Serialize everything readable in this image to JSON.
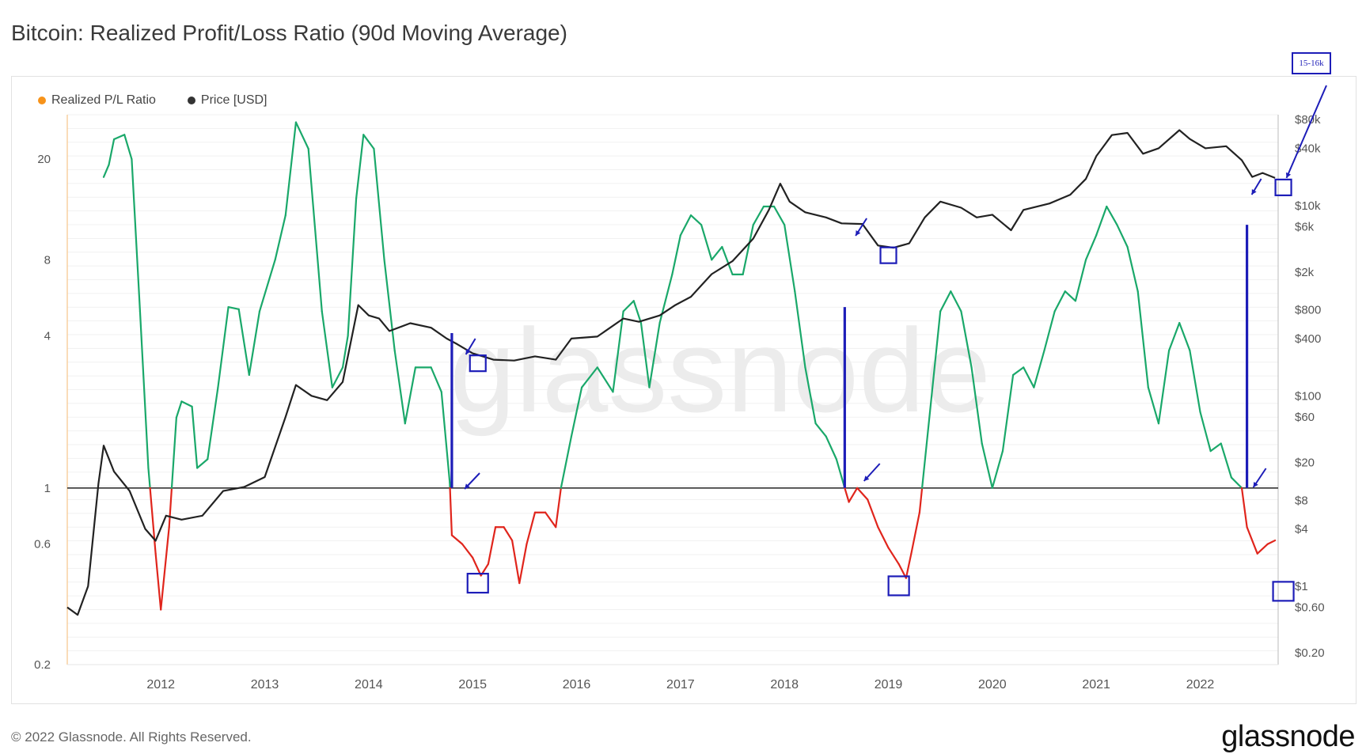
{
  "title": "Bitcoin: Realized Profit/Loss Ratio (90d Moving Average)",
  "legend": [
    {
      "label": "Realized P/L Ratio",
      "color": "#f7931a"
    },
    {
      "label": "Price [USD]",
      "color": "#333333"
    }
  ],
  "watermark": "glassnode",
  "footer": "© 2022 Glassnode. All Rights Reserved.",
  "brand": "glassnode",
  "annotation_badge": "15-16k",
  "colors": {
    "ratio_above_1": "#1aa86a",
    "ratio_below_1": "#e0251c",
    "price": "#222222",
    "annotation": "#1d1db8",
    "baseline": "#333333"
  },
  "chart_data": {
    "type": "line",
    "title": "Bitcoin: Realized Profit/Loss Ratio (90d Moving Average)",
    "x_range": [
      2011.1,
      2022.75
    ],
    "x_ticks": [
      "2012",
      "2013",
      "2014",
      "2015",
      "2016",
      "2017",
      "2018",
      "2019",
      "2020",
      "2021",
      "2022"
    ],
    "left_axis": {
      "scale": "log",
      "range": [
        0.2,
        30
      ],
      "ticks": [
        0.2,
        0.6,
        1,
        4,
        8,
        20
      ],
      "tick_labels": [
        "0.2",
        "0.6",
        "1",
        "4",
        "8",
        "20"
      ]
    },
    "right_axis": {
      "scale": "log",
      "range": [
        0.15,
        90000
      ],
      "ticks": [
        0.2,
        0.6,
        1,
        4,
        8,
        20,
        60,
        100,
        400,
        800,
        2000,
        6000,
        10000,
        40000,
        80000
      ],
      "tick_labels": [
        "$0.20",
        "$0.60",
        "$1",
        "$4",
        "$8",
        "$20",
        "$60",
        "$100",
        "$400",
        "$800",
        "$2k",
        "$6k",
        "$10k",
        "$40k",
        "$80k"
      ]
    },
    "baseline": 1,
    "series": [
      {
        "name": "Realized P/L Ratio",
        "axis": "left",
        "points": [
          [
            2011.45,
            17
          ],
          [
            2011.5,
            19
          ],
          [
            2011.55,
            24
          ],
          [
            2011.65,
            25
          ],
          [
            2011.72,
            20
          ],
          [
            2011.8,
            5
          ],
          [
            2011.88,
            1.2
          ],
          [
            2011.95,
            0.55
          ],
          [
            2012.0,
            0.33
          ],
          [
            2012.08,
            0.7
          ],
          [
            2012.15,
            1.9
          ],
          [
            2012.2,
            2.2
          ],
          [
            2012.3,
            2.1
          ],
          [
            2012.35,
            1.2
          ],
          [
            2012.45,
            1.3
          ],
          [
            2012.55,
            2.5
          ],
          [
            2012.65,
            5.2
          ],
          [
            2012.75,
            5.1
          ],
          [
            2012.85,
            2.8
          ],
          [
            2012.95,
            5
          ],
          [
            2013.1,
            8
          ],
          [
            2013.2,
            12
          ],
          [
            2013.3,
            28
          ],
          [
            2013.42,
            22
          ],
          [
            2013.55,
            5
          ],
          [
            2013.65,
            2.5
          ],
          [
            2013.75,
            3
          ],
          [
            2013.8,
            4
          ],
          [
            2013.88,
            14
          ],
          [
            2013.95,
            25
          ],
          [
            2014.05,
            22
          ],
          [
            2014.15,
            8
          ],
          [
            2014.25,
            3.5
          ],
          [
            2014.35,
            1.8
          ],
          [
            2014.45,
            3
          ],
          [
            2014.6,
            3
          ],
          [
            2014.7,
            2.4
          ],
          [
            2014.78,
            1.05
          ],
          [
            2014.8,
            0.65
          ],
          [
            2014.9,
            0.6
          ],
          [
            2015.0,
            0.53
          ],
          [
            2015.08,
            0.45
          ],
          [
            2015.15,
            0.5
          ],
          [
            2015.22,
            0.7
          ],
          [
            2015.3,
            0.7
          ],
          [
            2015.38,
            0.62
          ],
          [
            2015.45,
            0.42
          ],
          [
            2015.52,
            0.6
          ],
          [
            2015.6,
            0.8
          ],
          [
            2015.7,
            0.8
          ],
          [
            2015.8,
            0.7
          ],
          [
            2015.85,
            1
          ],
          [
            2015.95,
            1.6
          ],
          [
            2016.05,
            2.5
          ],
          [
            2016.2,
            3
          ],
          [
            2016.35,
            2.4
          ],
          [
            2016.45,
            5
          ],
          [
            2016.55,
            5.5
          ],
          [
            2016.62,
            4.5
          ],
          [
            2016.7,
            2.5
          ],
          [
            2016.8,
            4.5
          ],
          [
            2016.92,
            7
          ],
          [
            2017.0,
            10
          ],
          [
            2017.1,
            12
          ],
          [
            2017.2,
            11
          ],
          [
            2017.3,
            8
          ],
          [
            2017.4,
            9
          ],
          [
            2017.5,
            7
          ],
          [
            2017.6,
            7
          ],
          [
            2017.7,
            11
          ],
          [
            2017.8,
            13
          ],
          [
            2017.9,
            13
          ],
          [
            2018.0,
            11
          ],
          [
            2018.1,
            6
          ],
          [
            2018.2,
            3
          ],
          [
            2018.3,
            1.8
          ],
          [
            2018.4,
            1.6
          ],
          [
            2018.5,
            1.3
          ],
          [
            2018.58,
            1
          ],
          [
            2018.62,
            0.88
          ],
          [
            2018.7,
            1
          ],
          [
            2018.8,
            0.9
          ],
          [
            2018.9,
            0.7
          ],
          [
            2019.0,
            0.58
          ],
          [
            2019.1,
            0.5
          ],
          [
            2019.17,
            0.44
          ],
          [
            2019.22,
            0.55
          ],
          [
            2019.3,
            0.8
          ],
          [
            2019.4,
            2
          ],
          [
            2019.5,
            5
          ],
          [
            2019.6,
            6
          ],
          [
            2019.7,
            5
          ],
          [
            2019.8,
            3
          ],
          [
            2019.9,
            1.5
          ],
          [
            2020.0,
            1.0
          ],
          [
            2020.1,
            1.4
          ],
          [
            2020.2,
            2.8
          ],
          [
            2020.3,
            3
          ],
          [
            2020.4,
            2.5
          ],
          [
            2020.5,
            3.5
          ],
          [
            2020.6,
            5
          ],
          [
            2020.7,
            6
          ],
          [
            2020.8,
            5.5
          ],
          [
            2020.9,
            8
          ],
          [
            2021.0,
            10
          ],
          [
            2021.1,
            13
          ],
          [
            2021.2,
            11
          ],
          [
            2021.3,
            9
          ],
          [
            2021.4,
            6
          ],
          [
            2021.5,
            2.5
          ],
          [
            2021.6,
            1.8
          ],
          [
            2021.7,
            3.5
          ],
          [
            2021.8,
            4.5
          ],
          [
            2021.9,
            3.5
          ],
          [
            2022.0,
            2
          ],
          [
            2022.1,
            1.4
          ],
          [
            2022.2,
            1.5
          ],
          [
            2022.3,
            1.1
          ],
          [
            2022.4,
            1.0
          ],
          [
            2022.45,
            0.7
          ],
          [
            2022.55,
            0.55
          ],
          [
            2022.65,
            0.6
          ],
          [
            2022.72,
            0.62
          ]
        ]
      },
      {
        "name": "Price [USD]",
        "axis": "right",
        "points": [
          [
            2011.1,
            0.6
          ],
          [
            2011.2,
            0.5
          ],
          [
            2011.3,
            1
          ],
          [
            2011.4,
            12
          ],
          [
            2011.45,
            30
          ],
          [
            2011.55,
            16
          ],
          [
            2011.7,
            10
          ],
          [
            2011.85,
            4
          ],
          [
            2011.95,
            3
          ],
          [
            2012.05,
            5.5
          ],
          [
            2012.2,
            5
          ],
          [
            2012.4,
            5.5
          ],
          [
            2012.6,
            10
          ],
          [
            2012.8,
            11
          ],
          [
            2013.0,
            14
          ],
          [
            2013.2,
            60
          ],
          [
            2013.3,
            130
          ],
          [
            2013.45,
            100
          ],
          [
            2013.6,
            90
          ],
          [
            2013.75,
            140
          ],
          [
            2013.9,
            900
          ],
          [
            2014.0,
            700
          ],
          [
            2014.1,
            650
          ],
          [
            2014.2,
            480
          ],
          [
            2014.4,
            580
          ],
          [
            2014.6,
            520
          ],
          [
            2014.75,
            400
          ],
          [
            2014.85,
            350
          ],
          [
            2015.0,
            280
          ],
          [
            2015.2,
            240
          ],
          [
            2015.4,
            235
          ],
          [
            2015.6,
            260
          ],
          [
            2015.8,
            240
          ],
          [
            2015.95,
            400
          ],
          [
            2016.2,
            420
          ],
          [
            2016.45,
            650
          ],
          [
            2016.6,
            600
          ],
          [
            2016.8,
            700
          ],
          [
            2016.95,
            900
          ],
          [
            2017.1,
            1100
          ],
          [
            2017.3,
            1900
          ],
          [
            2017.5,
            2600
          ],
          [
            2017.7,
            4500
          ],
          [
            2017.85,
            9000
          ],
          [
            2017.96,
            17000
          ],
          [
            2018.05,
            11000
          ],
          [
            2018.2,
            8500
          ],
          [
            2018.4,
            7500
          ],
          [
            2018.55,
            6500
          ],
          [
            2018.75,
            6400
          ],
          [
            2018.9,
            3800
          ],
          [
            2019.05,
            3600
          ],
          [
            2019.2,
            4000
          ],
          [
            2019.35,
            7500
          ],
          [
            2019.5,
            11000
          ],
          [
            2019.7,
            9500
          ],
          [
            2019.85,
            7500
          ],
          [
            2020.0,
            8000
          ],
          [
            2020.18,
            5500
          ],
          [
            2020.3,
            9000
          ],
          [
            2020.55,
            10500
          ],
          [
            2020.75,
            13000
          ],
          [
            2020.9,
            19000
          ],
          [
            2021.0,
            33000
          ],
          [
            2021.15,
            55000
          ],
          [
            2021.3,
            58000
          ],
          [
            2021.45,
            35000
          ],
          [
            2021.6,
            40000
          ],
          [
            2021.8,
            62000
          ],
          [
            2021.9,
            50000
          ],
          [
            2022.05,
            40000
          ],
          [
            2022.25,
            42000
          ],
          [
            2022.4,
            30000
          ],
          [
            2022.5,
            20000
          ],
          [
            2022.6,
            22000
          ],
          [
            2022.72,
            19500
          ]
        ]
      }
    ],
    "annotations": [
      "vertical markers at 2014.8, 2018.58, 2022.45",
      "boxes near 2015.05 (ratio low), 2015.15 (price), 2019.1 (ratio low), 2019.0 (price), 2022.8 (ratio), 2022.8 (price)"
    ]
  }
}
